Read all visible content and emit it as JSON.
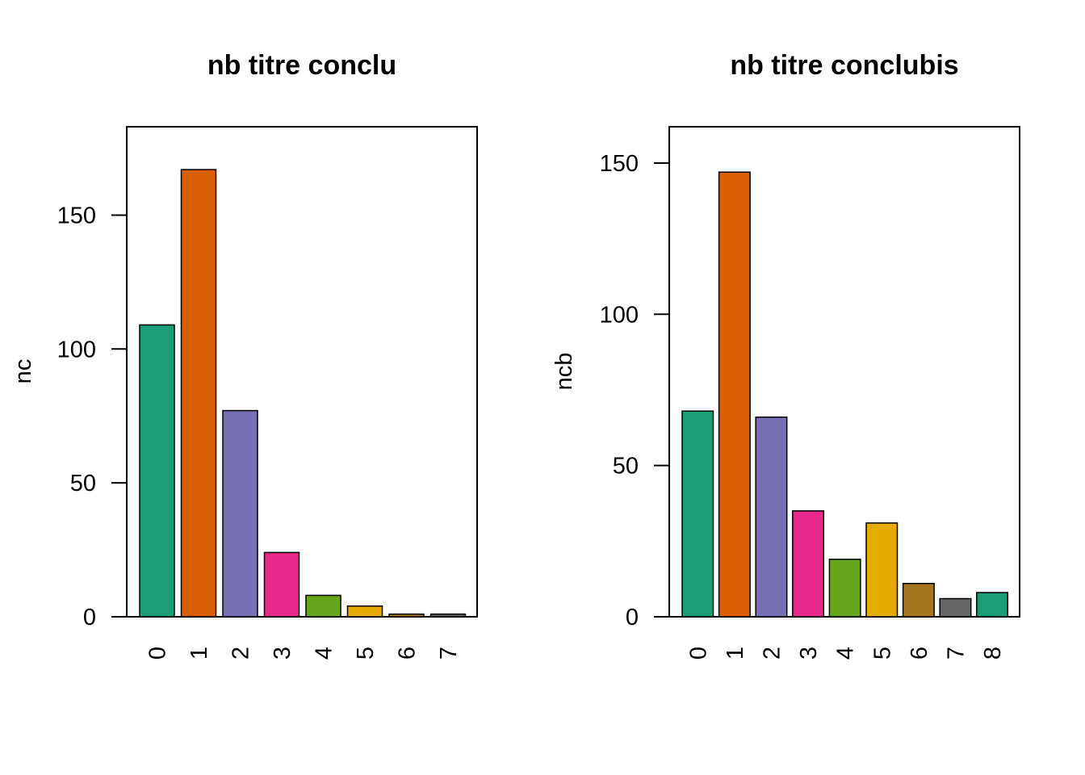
{
  "chart_data": [
    {
      "type": "bar",
      "title": "nb titre conclu",
      "xlabel": "",
      "ylabel": "nc",
      "categories": [
        "0",
        "1",
        "2",
        "3",
        "4",
        "5",
        "6",
        "7"
      ],
      "values": [
        109,
        167,
        77,
        24,
        8,
        4,
        1,
        1
      ],
      "colors": [
        "#1B9E77",
        "#D95F02",
        "#7570B3",
        "#E7298A",
        "#66A61E",
        "#E6AB02",
        "#A6761D",
        "#666666"
      ],
      "ylim": [
        0,
        183
      ],
      "yticks": [
        0,
        50,
        100,
        150
      ],
      "grid": false,
      "legend": "none"
    },
    {
      "type": "bar",
      "title": "nb titre conclubis",
      "xlabel": "",
      "ylabel": "ncb",
      "categories": [
        "0",
        "1",
        "2",
        "3",
        "4",
        "5",
        "6",
        "7",
        "8"
      ],
      "values": [
        68,
        147,
        66,
        35,
        19,
        31,
        11,
        6,
        8
      ],
      "colors": [
        "#1B9E77",
        "#D95F02",
        "#7570B3",
        "#E7298A",
        "#66A61E",
        "#E6AB02",
        "#A6761D",
        "#666666",
        "#1B9E77"
      ],
      "ylim": [
        0,
        162
      ],
      "yticks": [
        0,
        50,
        100,
        150
      ],
      "grid": false,
      "legend": "none"
    }
  ]
}
